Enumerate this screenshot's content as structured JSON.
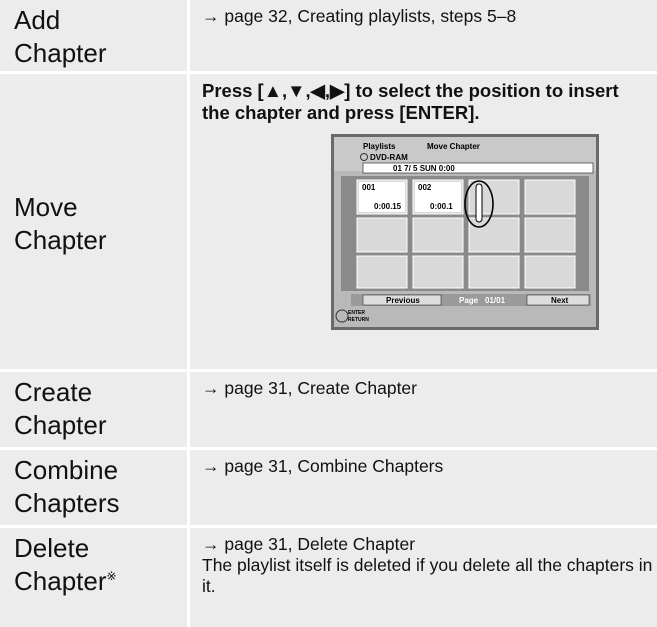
{
  "rows": [
    {
      "label": "Add Chapter",
      "text": "→ page 32, Creating playlists, steps 5–8"
    },
    {
      "label": "Move Chapter",
      "instruction": "Press [▲,▼,◀,▶] to select the position to insert the chapter and press [ENTER].",
      "screen": {
        "title": "Playlists",
        "mode": "Move Chapter",
        "disc": "DVD-RAM",
        "info": "01     7/ 5  SUN  0:00",
        "thumbnails": [
          {
            "number": "001",
            "time": "0:00.15"
          },
          {
            "number": "002",
            "time": "0:00.1"
          }
        ],
        "previous": "Previous",
        "page_label": "Page",
        "page": "01/01",
        "next": "Next",
        "enter": "ENTER",
        "return": "RETURN"
      }
    },
    {
      "label": "Create Chapter",
      "text": "→ page 31, Create Chapter"
    },
    {
      "label": "Combine Chapters",
      "text": "→ page 31, Combine Chapters"
    },
    {
      "label": "Delete Chapter",
      "mark": "※",
      "text": "→ page 31, Delete Chapter",
      "note": "The playlist itself is deleted if you delete all the chapters in it."
    }
  ]
}
